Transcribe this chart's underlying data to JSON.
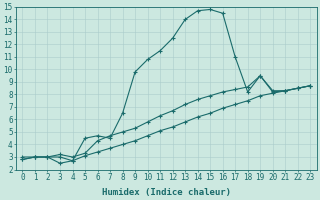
{
  "xlabel": "Humidex (Indice chaleur)",
  "xlim": [
    -0.5,
    23.5
  ],
  "ylim": [
    2,
    15
  ],
  "xticks": [
    0,
    1,
    2,
    3,
    4,
    5,
    6,
    7,
    8,
    9,
    10,
    11,
    12,
    13,
    14,
    15,
    16,
    17,
    18,
    19,
    20,
    21,
    22,
    23
  ],
  "yticks": [
    2,
    3,
    4,
    5,
    6,
    7,
    8,
    9,
    10,
    11,
    12,
    13,
    14,
    15
  ],
  "bg_color": "#cce8e0",
  "grid_color": "#aacccc",
  "line_color": "#1a6b6b",
  "line1_x": [
    0,
    1,
    2,
    3,
    4,
    5,
    6,
    7,
    8,
    9,
    10,
    11,
    12,
    13,
    14,
    15,
    16,
    17,
    18,
    19,
    20,
    21,
    22,
    23
  ],
  "line1_y": [
    3.0,
    3.0,
    3.0,
    2.5,
    2.7,
    4.5,
    4.7,
    4.5,
    6.5,
    9.8,
    10.8,
    11.5,
    12.5,
    14.0,
    14.7,
    14.8,
    14.5,
    11.0,
    8.2,
    9.5,
    8.2,
    8.3,
    8.5,
    8.7
  ],
  "line2_x": [
    0,
    1,
    2,
    3,
    4,
    5,
    6,
    7,
    8,
    9,
    10,
    11,
    12,
    13,
    14,
    15,
    16,
    17,
    18,
    19,
    20,
    21,
    22,
    23
  ],
  "line2_y": [
    2.8,
    3.0,
    3.0,
    3.2,
    3.0,
    3.3,
    4.3,
    4.7,
    5.0,
    5.3,
    5.8,
    6.3,
    6.7,
    7.2,
    7.6,
    7.9,
    8.2,
    8.4,
    8.6,
    9.5,
    8.3,
    8.3,
    8.5,
    8.7
  ],
  "line3_x": [
    0,
    1,
    2,
    3,
    4,
    5,
    6,
    7,
    8,
    9,
    10,
    11,
    12,
    13,
    14,
    15,
    16,
    17,
    18,
    19,
    20,
    21,
    22,
    23
  ],
  "line3_y": [
    2.8,
    3.0,
    3.0,
    3.0,
    2.7,
    3.1,
    3.4,
    3.7,
    4.0,
    4.3,
    4.7,
    5.1,
    5.4,
    5.8,
    6.2,
    6.5,
    6.9,
    7.2,
    7.5,
    7.9,
    8.1,
    8.3,
    8.5,
    8.7
  ]
}
